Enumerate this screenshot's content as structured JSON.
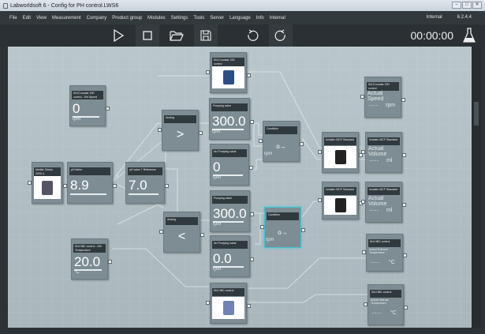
{
  "window": {
    "title": "Labworldsoft 6 - Config for PH control.LWS6",
    "controls": [
      "–",
      "□",
      "✕"
    ]
  },
  "menu": {
    "items": [
      "File",
      "Edit",
      "View",
      "Measurement",
      "Company",
      "Product group",
      "Modules",
      "Settings",
      "Tools",
      "Server",
      "Language",
      "Info",
      "Internal"
    ],
    "right": [
      "Internal",
      "6.2.4.4"
    ]
  },
  "toolbar": {
    "buttons": [
      "play",
      "stop",
      "open",
      "save",
      "undo",
      "redo"
    ],
    "timer": "00:00:00",
    "flask_icon": "flask-icon"
  },
  "nodes": [
    {
      "title": "IKA Eurostar 200 control",
      "kind": "image",
      "device": "stirrer"
    },
    {
      "title": "IKA Eurostar 200 control - Set Speed",
      "value": "0",
      "unit": "rpm"
    },
    {
      "title": "Analog",
      "symbol": ">"
    },
    {
      "title": "Pumping value",
      "value": "300.0",
      "unit": "rpm"
    },
    {
      "title": "No Pumping value",
      "value": "0",
      "unit": "rpm"
    },
    {
      "title": "Condition",
      "symbol": "o→",
      "unit": "rpm"
    },
    {
      "title": "Ismatec MCP Standard",
      "kind": "image",
      "device": "pump"
    },
    {
      "title": "Ismatec MCP Standard",
      "label": "Actual Volume",
      "dash": "----",
      "unit": "ml"
    },
    {
      "title": "IKA Eurostar 200 control",
      "label": "Actual Speed",
      "dash": "----",
      "unit": "rpm"
    },
    {
      "title": "Mettler Toledo 2000-4",
      "kind": "image",
      "device": "meter"
    },
    {
      "title": "pH Meter",
      "value": "8.9"
    },
    {
      "title": "pH value 7 Reference",
      "value": "7.0"
    },
    {
      "title": "Analog",
      "symbol": "<"
    },
    {
      "title": "Pumping value",
      "value": "300.0",
      "unit": "rpm"
    },
    {
      "title": "No Pumping value",
      "value": "0.0",
      "unit": "rpm"
    },
    {
      "title": "Condition",
      "symbol": "o→",
      "unit": "rpm",
      "selected": true
    },
    {
      "title": "Ismatec MCP Standard",
      "kind": "image",
      "device": "pump"
    },
    {
      "title": "Ismatec MCP Standard",
      "label": "Actual Volume",
      "dash": "----",
      "unit": "ml"
    },
    {
      "title": "IKA HBC control - Set Temperature",
      "value": "20.0",
      "unit": "°C"
    },
    {
      "title": "IKA HBC control",
      "kind": "image",
      "device": "bath"
    },
    {
      "title": "IKA HBC control",
      "label": "Actual External Temperature",
      "dash": "----",
      "unit": "°C",
      "small": true
    },
    {
      "title": "IKA HBC control",
      "label": "Actual Internal Temperature",
      "dash": "----",
      "unit": "°C",
      "small": true
    }
  ],
  "colors": {
    "canvas": "#b3c1c6",
    "node": "#7d8d93",
    "header": "#303a3e",
    "selected": "#43c3d6",
    "chrome": "#2c3236"
  }
}
